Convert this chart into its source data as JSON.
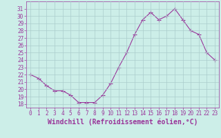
{
  "x": [
    0,
    1,
    2,
    3,
    4,
    5,
    6,
    7,
    8,
    9,
    10,
    11,
    12,
    13,
    14,
    15,
    16,
    17,
    18,
    19,
    20,
    21,
    22,
    23
  ],
  "y": [
    22,
    21.5,
    20.5,
    19.8,
    19.8,
    19.2,
    18.2,
    18.2,
    18.2,
    19.2,
    20.8,
    23,
    25,
    27.5,
    29.5,
    30.5,
    29.5,
    30,
    31,
    29.5,
    28,
    27.5,
    25,
    24
  ],
  "line_color": "#993399",
  "marker": "+",
  "marker_size": 4,
  "bg_color": "#cceee8",
  "grid_color": "#aacccc",
  "xlabel": "Windchill (Refroidissement éolien,°C)",
  "xlabel_color": "#993399",
  "tick_color": "#993399",
  "ylim": [
    17.5,
    32
  ],
  "xlim": [
    -0.5,
    23.5
  ],
  "yticks": [
    18,
    19,
    20,
    21,
    22,
    23,
    24,
    25,
    26,
    27,
    28,
    29,
    30,
    31
  ],
  "xticks": [
    0,
    1,
    2,
    3,
    4,
    5,
    6,
    7,
    8,
    9,
    10,
    11,
    12,
    13,
    14,
    15,
    16,
    17,
    18,
    19,
    20,
    21,
    22,
    23
  ],
  "tick_fontsize": 5.5,
  "xlabel_fontsize": 7.0
}
